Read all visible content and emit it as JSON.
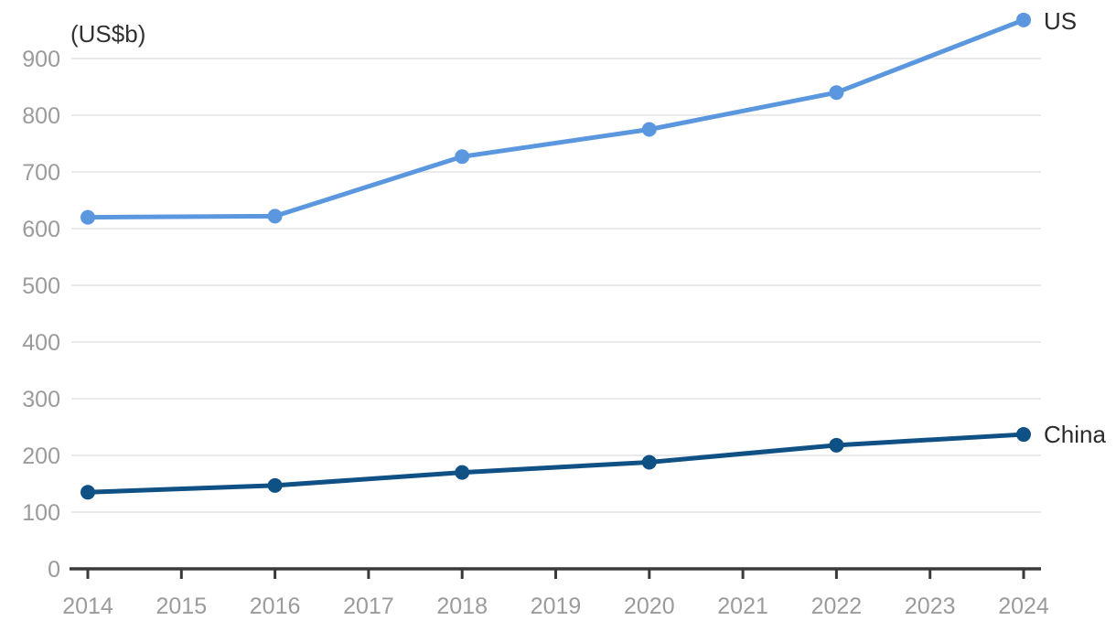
{
  "chart_data": {
    "type": "line",
    "title": "",
    "unit_label": "(US$b)",
    "xlabel": "",
    "ylabel": "(US$b)",
    "x_ticks": [
      2014,
      2015,
      2016,
      2017,
      2018,
      2019,
      2020,
      2021,
      2022,
      2023,
      2024
    ],
    "y_ticks": [
      0,
      100,
      200,
      300,
      400,
      500,
      600,
      700,
      800,
      900
    ],
    "ylim": [
      0,
      1000
    ],
    "grid": "horizontal-only",
    "legend_position": "right-end-of-lines",
    "x": [
      2014,
      2016,
      2018,
      2020,
      2022,
      2024
    ],
    "series": [
      {
        "name": "US",
        "color": "#5B97DF",
        "values": [
          620,
          622,
          727,
          775,
          840,
          968
        ]
      },
      {
        "name": "China",
        "color": "#0F5085",
        "values": [
          135,
          147,
          170,
          188,
          218,
          237
        ]
      }
    ],
    "colors": {
      "background": "#FFFFFF",
      "gridline": "#EAEAEA",
      "axis_line": "#3A3A3A",
      "tick_label": "#9B9B9B",
      "unit_label": "#333333",
      "series_label": "#2B2B2B"
    }
  }
}
